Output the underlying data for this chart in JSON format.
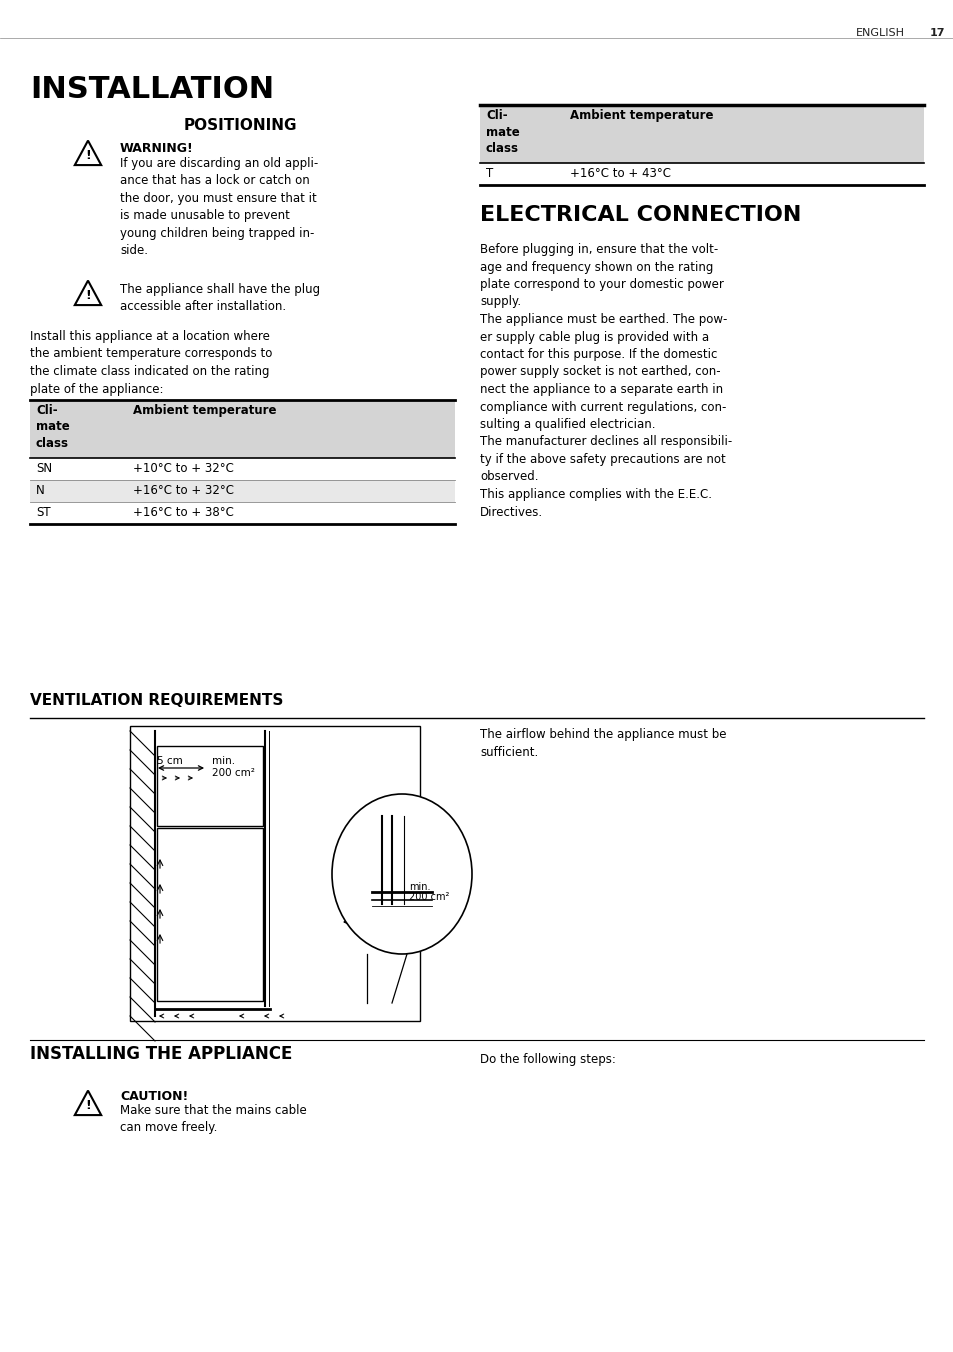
{
  "bg_color": "#ffffff",
  "text_color": "#000000",
  "header_text": "ENGLISH",
  "header_num": "17",
  "main_title": "INSTALLATION",
  "section1_title": "POSITIONING",
  "warning1_bold": "WARNING!",
  "warning1_text": "If you are discarding an old appli-\nance that has a lock or catch on\nthe door, you must ensure that it\nis made unusable to prevent\nyoung children being trapped in-\nside.",
  "warning2_text": "The appliance shall have the plug\naccessible after installation.",
  "body1_text": "Install this appliance at a location where\nthe ambient temperature corresponds to\nthe climate class indicated on the rating\nplate of the appliance:",
  "table1_col1_header": "Cli-\nmate\nclass",
  "table1_col2_header": "Ambient temperature",
  "table1_rows": [
    [
      "SN",
      "+10°C to + 32°C"
    ],
    [
      "N",
      "+16°C to + 32°C"
    ],
    [
      "ST",
      "+16°C to + 38°C"
    ]
  ],
  "table2_col1_header": "Cli-\nmate\nclass",
  "table2_col2_header": "Ambient temperature",
  "table2_rows": [
    [
      "T",
      "+16°C to + 43°C"
    ]
  ],
  "section2_title": "ELECTRICAL CONNECTION",
  "elec_text": "Before plugging in, ensure that the volt-\nage and frequency shown on the rating\nplate correspond to your domestic power\nsupply.\nThe appliance must be earthed. The pow-\ner supply cable plug is provided with a\ncontact for this purpose. If the domestic\npower supply socket is not earthed, con-\nnect the appliance to a separate earth in\ncompliance with current regulations, con-\nsulting a qualified electrician.\nThe manufacturer declines all responsibili-\nty if the above safety precautions are not\nobserved.\nThis appliance complies with the E.E.C.\nDirectives.",
  "section3_title": "VENTILATION REQUIREMENTS",
  "vent_text": "The airflow behind the appliance must be\nsufficient.",
  "section4_title": "INSTALLING THE APPLIANCE",
  "caution_bold": "CAUTION!",
  "caution_text": "Make sure that the mains cable\ncan move freely.",
  "install_right_text": "Do the following steps:"
}
